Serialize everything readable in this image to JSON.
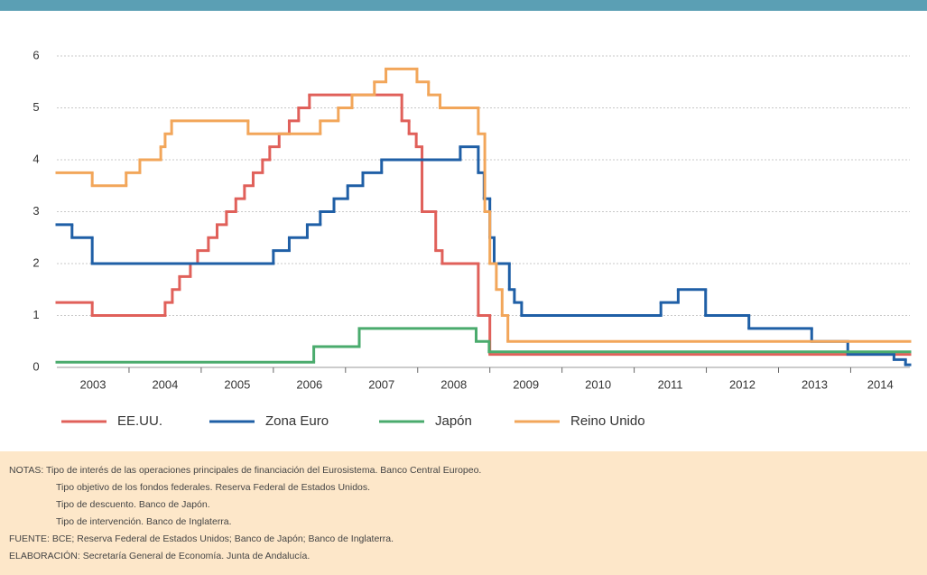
{
  "chart_data": {
    "type": "step",
    "xlim": [
      2003,
      2014.82
    ],
    "ylim": [
      0,
      6
    ],
    "yticks": [
      0,
      1,
      2,
      3,
      4,
      5,
      6
    ],
    "grid": true,
    "categories": [
      2003,
      2004,
      2005,
      2006,
      2007,
      2008,
      2009,
      2010,
      2011,
      2012,
      2013,
      2014
    ],
    "xticks": [
      2004,
      2005,
      2006,
      2007,
      2008,
      2009,
      2010,
      2011,
      2012,
      2013,
      2014
    ],
    "series": [
      {
        "name": "EE.UU.",
        "color": "#e0605a",
        "x": [
          2003,
          2003.49,
          2004.5,
          2004.6,
          2004.7,
          2004.85,
          2004.95,
          2005.1,
          2005.22,
          2005.35,
          2005.48,
          2005.6,
          2005.72,
          2005.85,
          2005.95,
          2006.08,
          2006.22,
          2006.35,
          2006.5,
          2007.78,
          2007.88,
          2007.98,
          2008.06,
          2008.25,
          2008.34,
          2008.84,
          2009.0
        ],
        "values": [
          1.25,
          1.0,
          1.25,
          1.5,
          1.75,
          2.0,
          2.25,
          2.5,
          2.75,
          3.0,
          3.25,
          3.5,
          3.75,
          4.0,
          4.25,
          4.5,
          4.75,
          5.0,
          5.25,
          4.75,
          4.5,
          4.25,
          3.0,
          2.25,
          2.0,
          1.0,
          0.25
        ]
      },
      {
        "name": "Zona Euro",
        "color": "#1f5fa6",
        "x": [
          2003,
          2003.21,
          2003.49,
          2006.0,
          2006.22,
          2006.47,
          2006.65,
          2006.84,
          2007.03,
          2007.24,
          2007.5,
          2008.59,
          2008.84,
          2008.92,
          2009.0,
          2009.06,
          2009.27,
          2009.34,
          2009.44,
          2011.37,
          2011.61,
          2011.99,
          2012.59,
          2013.46,
          2013.96,
          2014.6,
          2014.76
        ],
        "values": [
          2.75,
          2.5,
          2.0,
          2.25,
          2.5,
          2.75,
          3.0,
          3.25,
          3.5,
          3.75,
          4.0,
          4.25,
          3.75,
          3.25,
          2.5,
          2.0,
          1.5,
          1.25,
          1.0,
          1.25,
          1.5,
          1.0,
          0.75,
          0.5,
          0.25,
          0.15,
          0.05
        ]
      },
      {
        "name": "Japón",
        "color": "#4aab6d",
        "x": [
          2003,
          2006.56,
          2007.19,
          2008.81,
          2008.99
        ],
        "values": [
          0.1,
          0.4,
          0.75,
          0.5,
          0.3
        ]
      },
      {
        "name": "Reino Unido",
        "color": "#f2a65a",
        "x": [
          2003,
          2003.49,
          2003.96,
          2004.15,
          2004.44,
          2004.5,
          2004.59,
          2005.65,
          2006.65,
          2006.9,
          2007.09,
          2007.4,
          2007.56,
          2007.99,
          2008.15,
          2008.31,
          2008.84,
          2008.93,
          2009.0,
          2009.09,
          2009.17,
          2009.25
        ],
        "values": [
          3.75,
          3.5,
          3.75,
          4.0,
          4.25,
          4.5,
          4.75,
          4.5,
          4.75,
          5.0,
          5.25,
          5.5,
          5.75,
          5.5,
          5.25,
          5.0,
          4.5,
          3.0,
          2.0,
          1.5,
          1.0,
          0.5
        ]
      }
    ]
  },
  "notes": [
    "NOTAS: Tipo de interés de las operaciones principales de financiación del Eurosistema. Banco Central Europeo.",
    "Tipo objetivo de los fondos federales. Reserva Federal de Estados Unidos.",
    "Tipo de descuento. Banco de Japón.",
    "Tipo de intervención. Banco de Inglaterra.",
    "FUENTE: BCE; Reserva Federal de Estados Unidos; Banco de Japón; Banco de Inglaterra.",
    "ELABORACIÓN: Secretaría General de Economía. Junta de Andalucía."
  ]
}
